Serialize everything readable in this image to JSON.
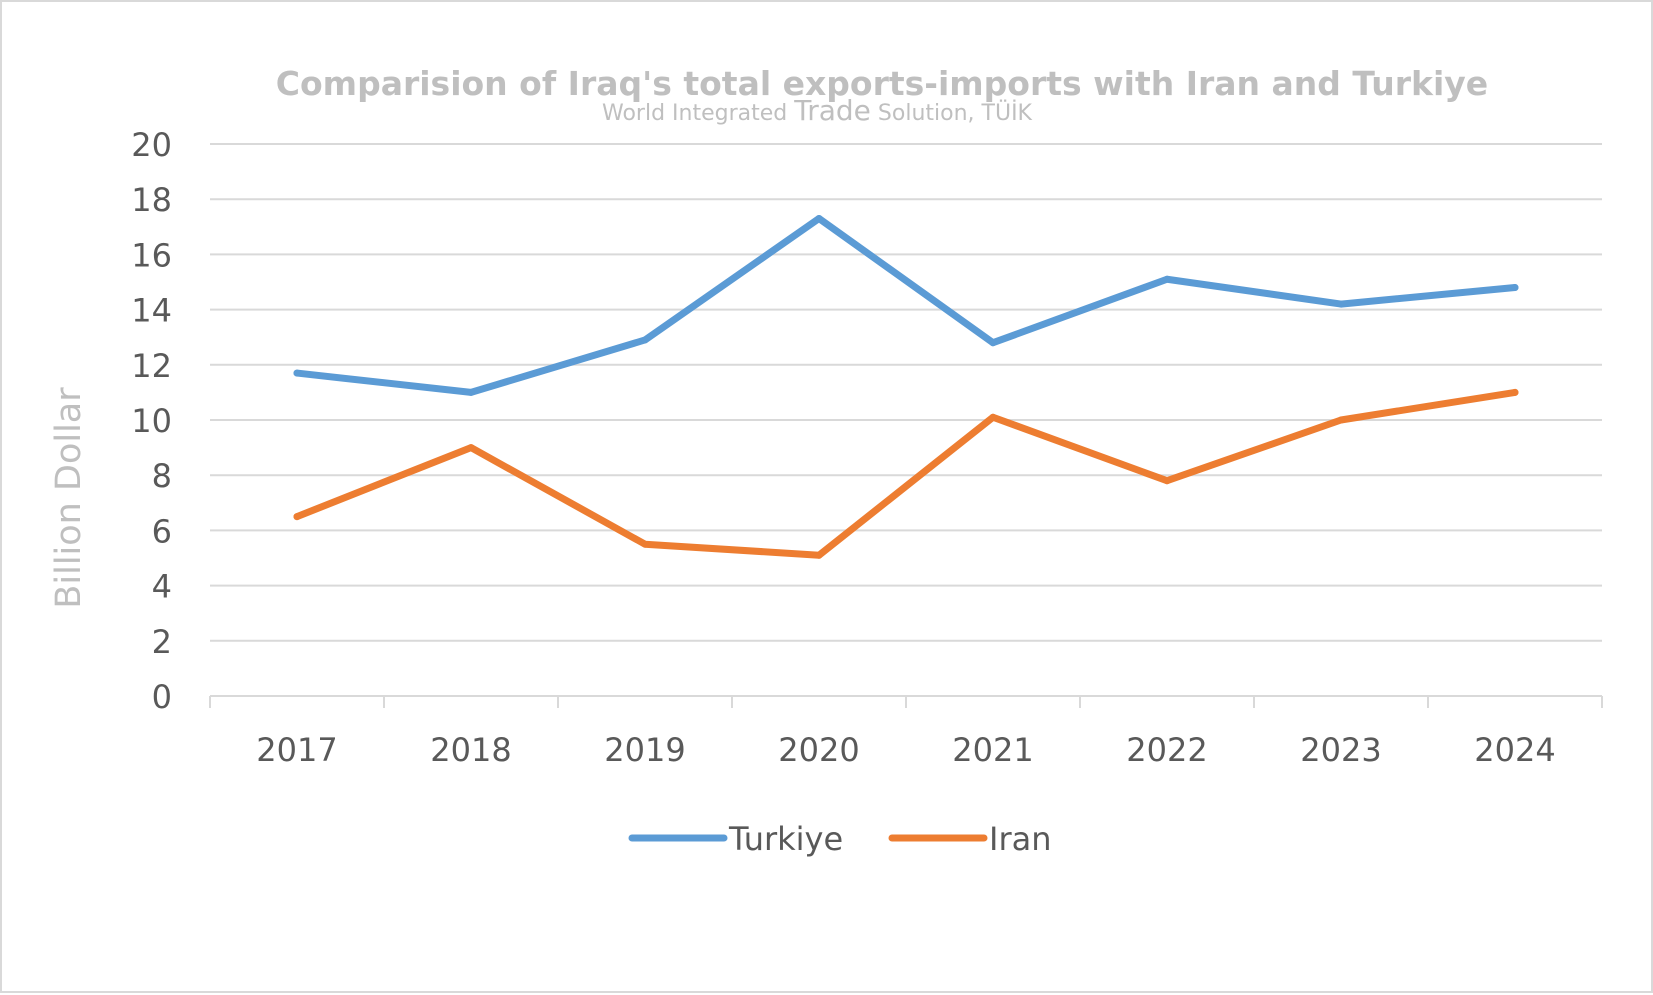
{
  "chart_data": {
    "type": "line",
    "title": "Comparision of Iraq's total exports-imports with Iran and Turkiye",
    "subtitle": {
      "before": "World Integrated ",
      "emphasis": "Trade",
      "after": " Solution, TÜİK"
    },
    "xlabel": "",
    "ylabel": "Billion Dollar",
    "categories": [
      "2017",
      "2018",
      "2019",
      "2020",
      "2021",
      "2022",
      "2023",
      "2024"
    ],
    "ylim": [
      0,
      20
    ],
    "yticks": [
      "0",
      "2",
      "4",
      "6",
      "8",
      "10",
      "12",
      "14",
      "16",
      "18",
      "20"
    ],
    "grid": true,
    "legend_position": "bottom",
    "series": [
      {
        "name": "Turkiye",
        "color": "#5b9bd5",
        "values": [
          11.7,
          11.0,
          12.9,
          17.3,
          12.8,
          15.1,
          14.2,
          14.8
        ]
      },
      {
        "name": "Iran",
        "color": "#ed7d31",
        "values": [
          6.5,
          9.0,
          5.5,
          5.1,
          10.1,
          7.8,
          10.0,
          11.0
        ]
      }
    ]
  }
}
